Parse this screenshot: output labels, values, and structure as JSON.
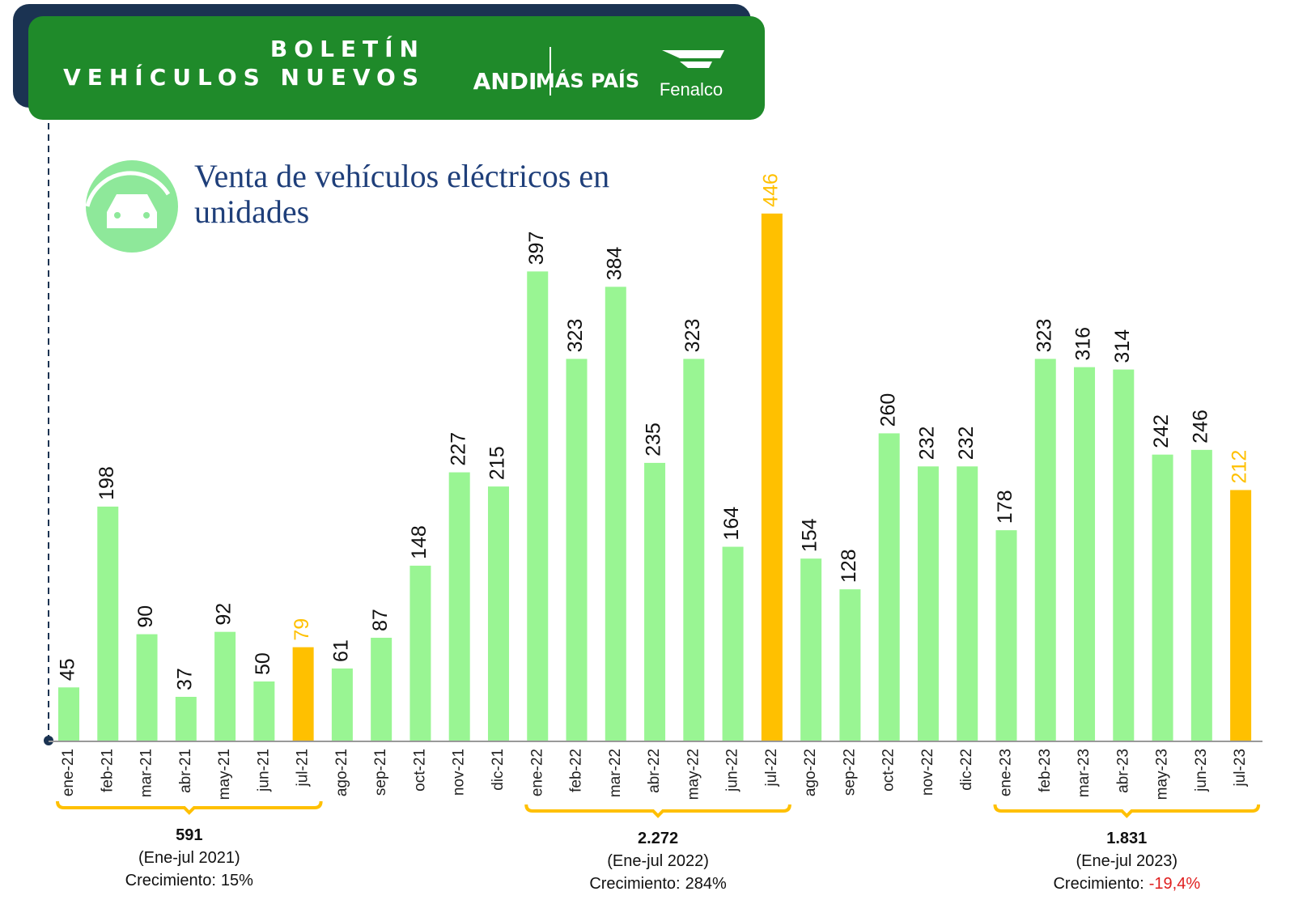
{
  "header": {
    "title_line1": "BOLETÍN",
    "title_line2": "VEHÍCULOS NUEVOS",
    "logos": [
      "ANDI",
      "MÁS PAÍS",
      "Fenalco"
    ]
  },
  "chart_data": {
    "type": "bar",
    "title": "Venta de vehículos eléctricos en unidades",
    "categories": [
      "ene-21",
      "feb-21",
      "mar-21",
      "abr-21",
      "may-21",
      "jun-21",
      "jul-21",
      "ago-21",
      "sep-21",
      "oct-21",
      "nov-21",
      "dic-21",
      "ene-22",
      "feb-22",
      "mar-22",
      "abr-22",
      "may-22",
      "jun-22",
      "jul-22",
      "ago-22",
      "sep-22",
      "oct-22",
      "nov-22",
      "dic-22",
      "ene-23",
      "feb-23",
      "mar-23",
      "abr-23",
      "may-23",
      "jun-23",
      "jul-23"
    ],
    "values": [
      45,
      198,
      90,
      37,
      92,
      50,
      79,
      61,
      87,
      148,
      227,
      215,
      397,
      323,
      384,
      235,
      323,
      164,
      446,
      154,
      128,
      260,
      232,
      232,
      178,
      323,
      316,
      314,
      242,
      246,
      212
    ],
    "color": "#99f593",
    "highlight_color": "#ffc000",
    "highlight_categories": [
      "jul-21",
      "jul-22",
      "jul-23"
    ],
    "summaries": [
      {
        "from": "ene-21",
        "to": "jul-21",
        "total": "591",
        "period": "(Ene-jul 2021)",
        "growth_label": "Crecimiento:",
        "growth": "15%",
        "growth_color": "#111111"
      },
      {
        "from": "ene-22",
        "to": "jul-22",
        "total": "2.272",
        "period": "(Ene-jul 2022)",
        "growth_label": "Crecimiento:",
        "growth": "284%",
        "growth_color": "#111111"
      },
      {
        "from": "ene-23",
        "to": "jul-23",
        "total": "1.831",
        "period": "(Ene-jul 2023)",
        "growth_label": "Crecimiento:",
        "growth": "-19,4%",
        "growth_color": "#e02020"
      }
    ]
  }
}
